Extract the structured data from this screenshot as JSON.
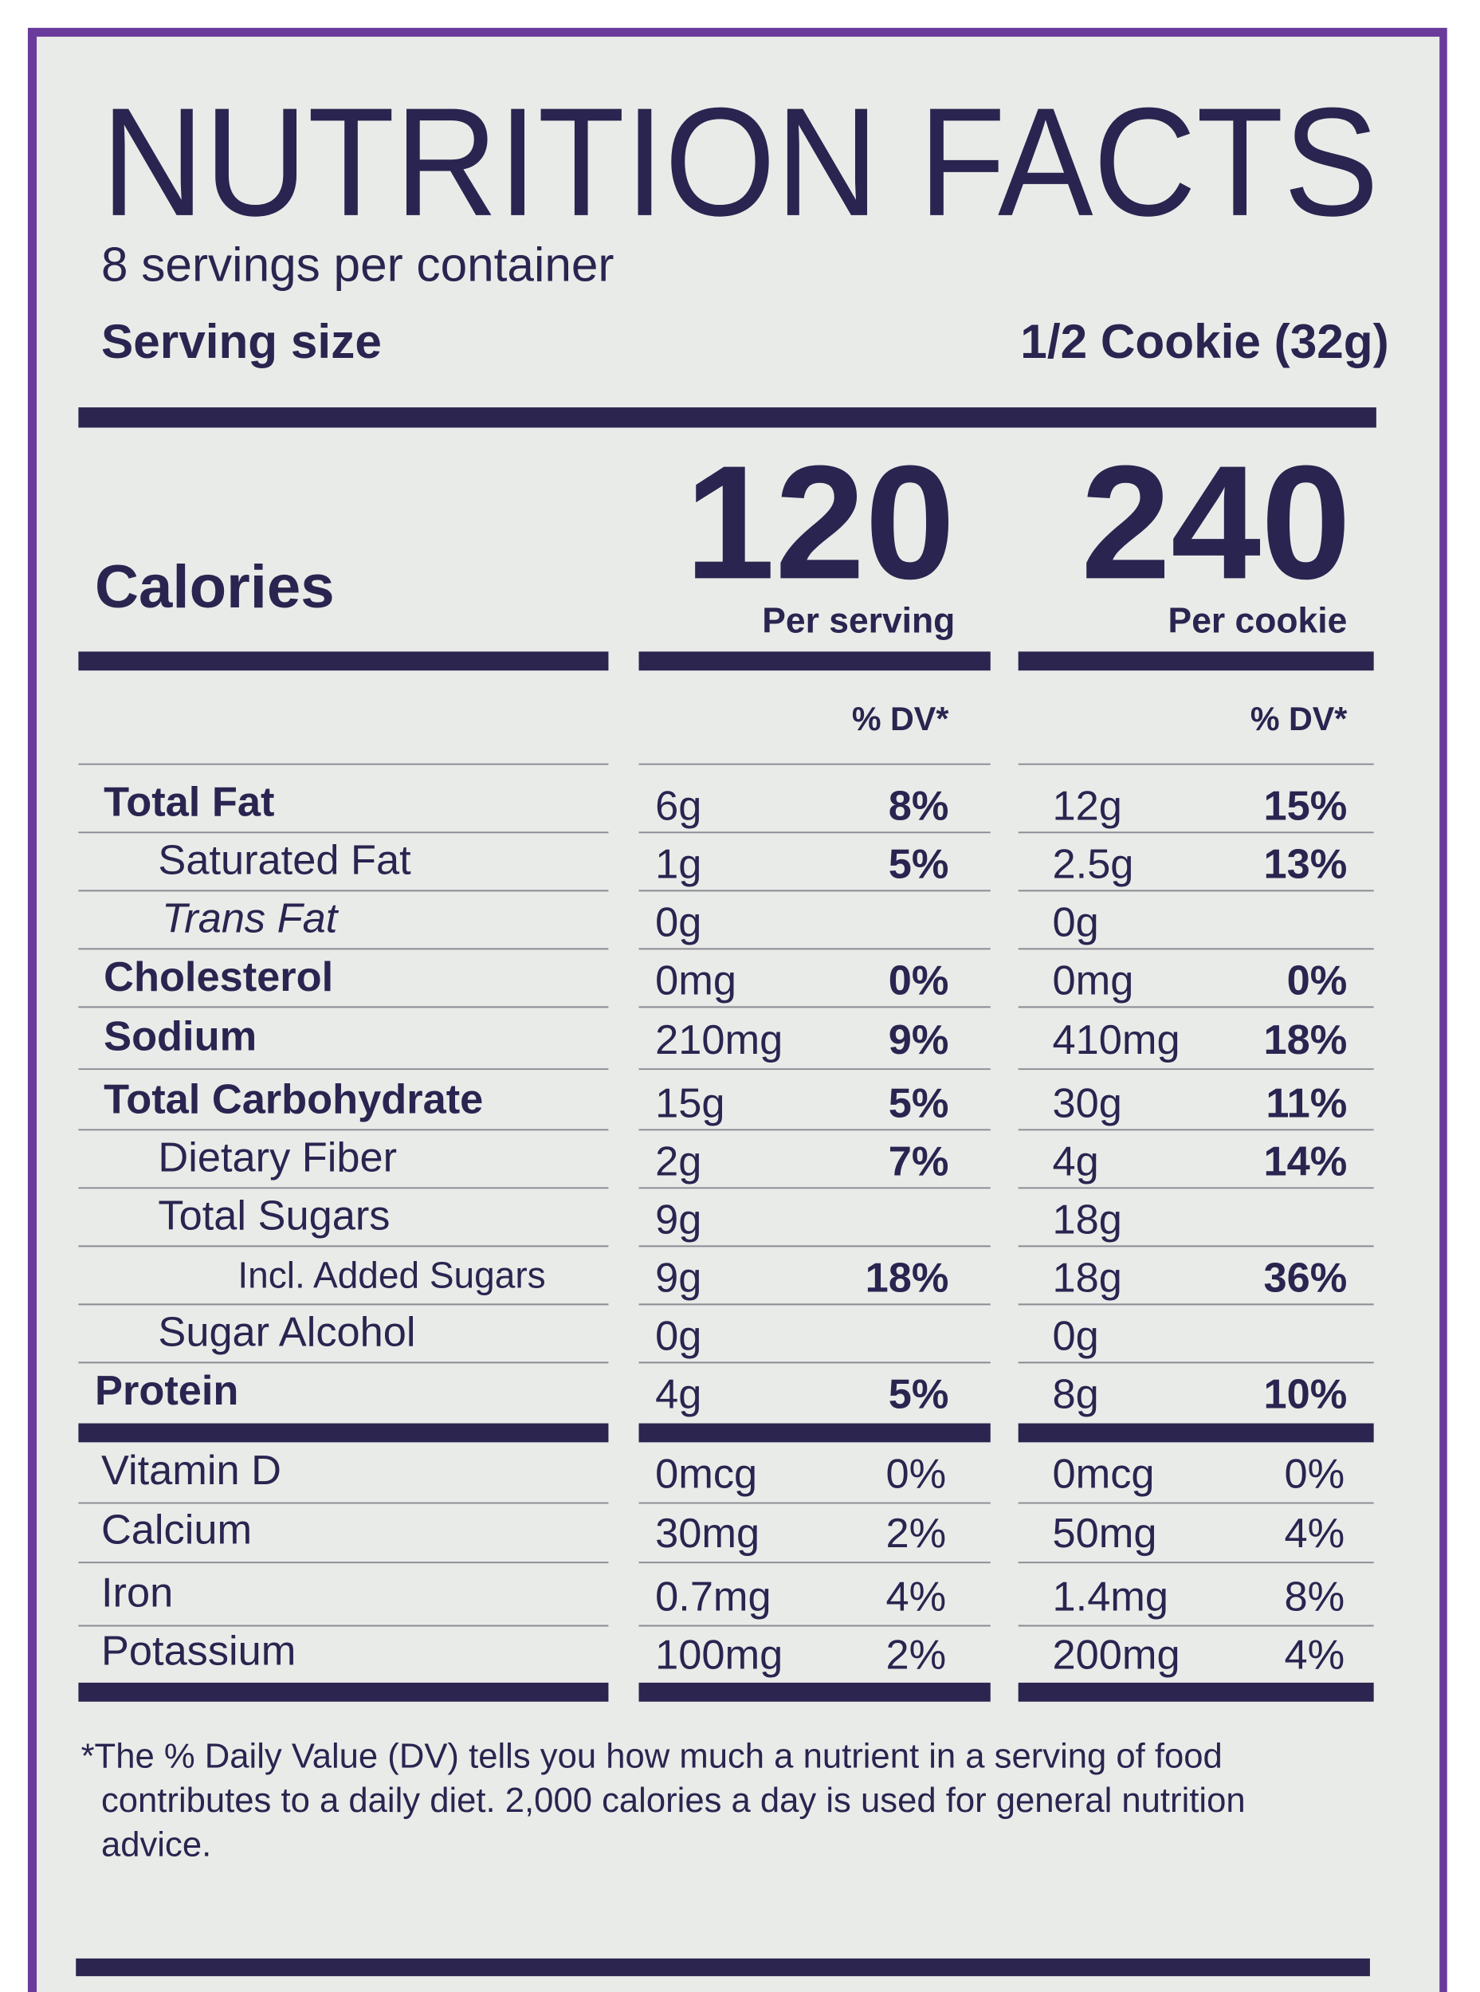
{
  "title": "NUTRITION FACTS",
  "servings": "8 servings per container",
  "serving_size": {
    "label": "Serving size",
    "value": "1/2 Cookie (32g)"
  },
  "calories": {
    "label": "Calories",
    "columns": [
      {
        "amount": 120,
        "basis": "Per serving"
      },
      {
        "amount": 240,
        "basis": "Per cookie"
      }
    ]
  },
  "dv_header": [
    "% DV*",
    "% DV*"
  ],
  "nutrients": [
    {
      "name": "Total Fat",
      "style": "bold",
      "values": [
        [
          "6g",
          "8%"
        ],
        [
          "12g",
          "15%"
        ]
      ]
    },
    {
      "name": "Saturated Fat",
      "style": "indent",
      "values": [
        [
          "1g",
          "5%"
        ],
        [
          "2.5g",
          "13%"
        ]
      ]
    },
    {
      "name": "Trans Fat",
      "style": "italic",
      "values": [
        [
          "0g"
        ],
        [
          "0g"
        ]
      ]
    },
    {
      "name": "Cholesterol",
      "style": "bold",
      "values": [
        [
          "0mg",
          "0%"
        ],
        [
          "0mg",
          "0%"
        ]
      ]
    },
    {
      "name": "Sodium",
      "style": "bold",
      "values": [
        [
          "210mg",
          "9%"
        ],
        [
          "410mg",
          "18%"
        ]
      ]
    },
    {
      "name": "Total Carbohydrate",
      "style": "bold",
      "values": [
        [
          "15g",
          "5%"
        ],
        [
          "30g",
          "11%"
        ]
      ]
    },
    {
      "name": "Dietary Fiber",
      "style": "indent",
      "values": [
        [
          "2g",
          "7%"
        ],
        [
          "4g",
          "14%"
        ]
      ]
    },
    {
      "name": "Total Sugars",
      "style": "indent",
      "values": [
        [
          "9g"
        ],
        [
          "18g"
        ]
      ]
    },
    {
      "name": "Incl. Added Sugars",
      "style": "subindent",
      "values": [
        [
          "9g",
          "18%"
        ],
        [
          "18g",
          "36%"
        ]
      ]
    },
    {
      "name": "Sugar Alcohol",
      "style": "indent",
      "values": [
        [
          "0g"
        ],
        [
          "0g"
        ]
      ]
    },
    {
      "name": "Protein",
      "style": "bold",
      "values": [
        [
          "4g",
          "5%"
        ],
        [
          "8g",
          "10%"
        ]
      ]
    }
  ],
  "vitamins": [
    {
      "name": "Vitamin D",
      "values": [
        [
          "0mcg",
          "0%"
        ],
        [
          "0mcg",
          "0%"
        ]
      ]
    },
    {
      "name": "Calcium",
      "values": [
        [
          "30mg",
          "2%"
        ],
        [
          "50mg",
          "4%"
        ]
      ]
    },
    {
      "name": "Iron",
      "values": [
        [
          "0.7mg",
          "4%"
        ],
        [
          "1.4mg",
          "8%"
        ]
      ]
    },
    {
      "name": "Potassium",
      "values": [
        [
          "100mg",
          "2%"
        ],
        [
          "200mg",
          "4%"
        ]
      ]
    }
  ],
  "footnote": [
    "*The % Daily Value (DV) tells you how much a nutrient in a serving of food",
    "contributes to a daily diet. 2,000 calories a day is used for general nutrition",
    "advice."
  ]
}
